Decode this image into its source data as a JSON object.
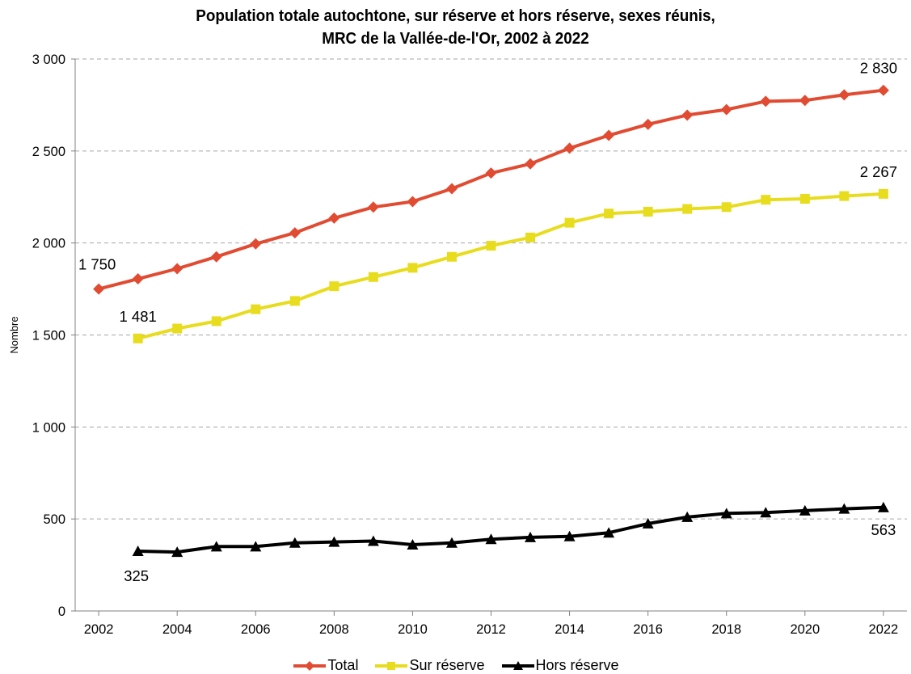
{
  "chart_data": {
    "type": "line",
    "title_line1": "Population totale autochtone, sur réserve et hors réserve, sexes réunis,",
    "title_line2": "MRC de la Vallée-de-l'Or, 2002 à 2022",
    "xlabel": "",
    "ylabel": "Nombre",
    "ylim": [
      0,
      3000
    ],
    "xlim": [
      2002,
      2022
    ],
    "yticks": [
      0,
      500,
      1000,
      1500,
      2000,
      2500,
      3000
    ],
    "ytick_labels": [
      "0",
      "500",
      "1 000",
      "1 500",
      "2 000",
      "2 500",
      "3 000"
    ],
    "xticks": [
      2002,
      2004,
      2006,
      2008,
      2010,
      2012,
      2014,
      2016,
      2018,
      2020,
      2022
    ],
    "xtick_labels": [
      "2002",
      "2004",
      "2006",
      "2008",
      "2010",
      "2012",
      "2014",
      "2016",
      "2018",
      "2020",
      "2022"
    ],
    "grid": "horizontal dashed",
    "legend_position": "bottom",
    "series": [
      {
        "name": "Total",
        "color": "#E04B32",
        "marker": "diamond",
        "x": [
          2002,
          2003,
          2004,
          2005,
          2006,
          2007,
          2008,
          2009,
          2010,
          2011,
          2012,
          2013,
          2014,
          2015,
          2016,
          2017,
          2018,
          2019,
          2020,
          2021,
          2022
        ],
        "values": [
          1750,
          1805,
          1860,
          1925,
          1995,
          2055,
          2135,
          2195,
          2225,
          2295,
          2380,
          2430,
          2515,
          2585,
          2645,
          2695,
          2725,
          2770,
          2775,
          2805,
          2830
        ],
        "labels": [
          {
            "x": 2002,
            "text": "1 750"
          },
          {
            "x": 2022,
            "text": "2 830"
          }
        ]
      },
      {
        "name": "Sur réserve",
        "color": "#E8DC1E",
        "marker": "square",
        "x": [
          2003,
          2004,
          2005,
          2006,
          2007,
          2008,
          2009,
          2010,
          2011,
          2012,
          2013,
          2014,
          2015,
          2016,
          2017,
          2018,
          2019,
          2020,
          2021,
          2022
        ],
        "values": [
          1481,
          1535,
          1575,
          1640,
          1685,
          1765,
          1815,
          1865,
          1925,
          1985,
          2030,
          2110,
          2160,
          2170,
          2185,
          2195,
          2235,
          2240,
          2255,
          2267
        ],
        "labels": [
          {
            "x": 2003,
            "text": "1 481"
          },
          {
            "x": 2022,
            "text": "2 267"
          }
        ]
      },
      {
        "name": "Hors réserve",
        "color": "#000000",
        "marker": "triangle",
        "x": [
          2003,
          2004,
          2005,
          2006,
          2007,
          2008,
          2009,
          2010,
          2011,
          2012,
          2013,
          2014,
          2015,
          2016,
          2017,
          2018,
          2019,
          2020,
          2021,
          2022
        ],
        "values": [
          325,
          320,
          350,
          350,
          370,
          375,
          380,
          360,
          370,
          390,
          400,
          405,
          425,
          475,
          510,
          530,
          535,
          545,
          555,
          563
        ],
        "labels": [
          {
            "x": 2003,
            "text": "325"
          },
          {
            "x": 2022,
            "text": "563"
          }
        ]
      }
    ]
  }
}
